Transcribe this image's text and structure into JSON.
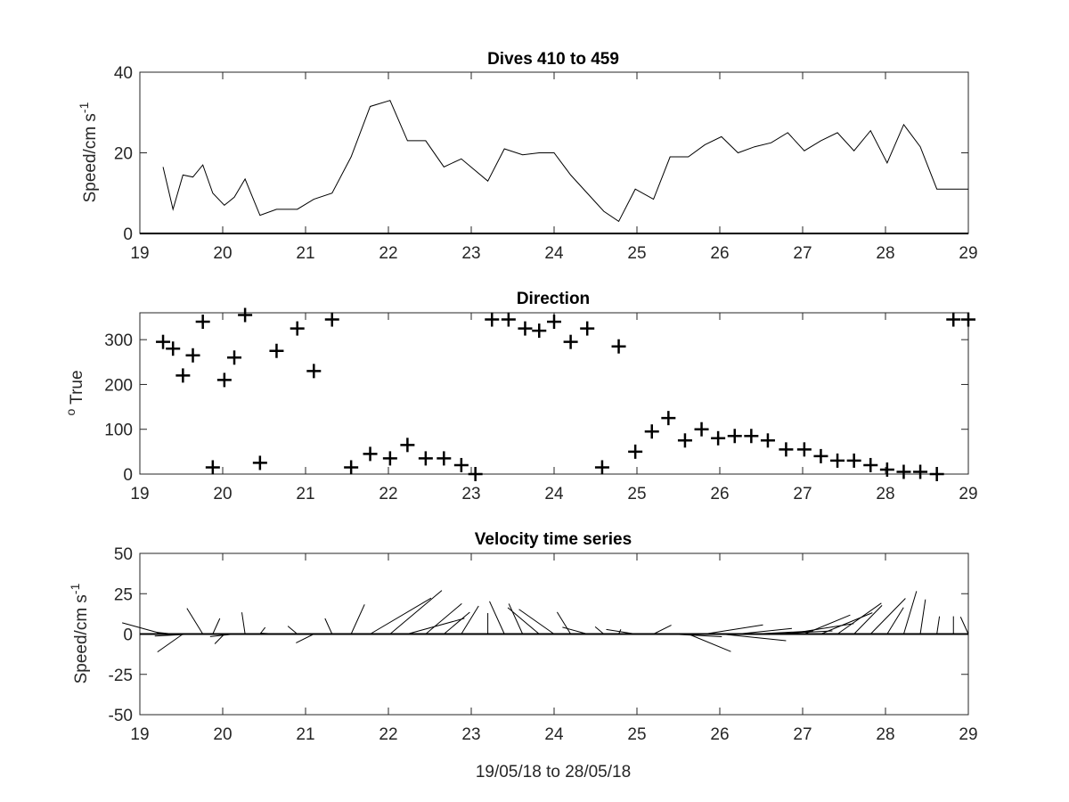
{
  "chart_data": [
    {
      "type": "line",
      "title": "Dives 410 to 459",
      "ylabel_base": "Speed/cm s",
      "ylabel_sup": "-1",
      "xlim": [
        19,
        29
      ],
      "ylim": [
        0,
        40
      ],
      "xticks": [
        19,
        20,
        21,
        22,
        23,
        24,
        25,
        26,
        27,
        28,
        29
      ],
      "yticks": [
        0,
        20,
        40
      ],
      "zero_line": true,
      "series": [
        {
          "x": [
            19.28,
            19.4,
            19.52,
            19.64,
            19.76,
            19.88,
            20.02,
            20.14,
            20.27,
            20.45,
            20.65,
            20.9,
            21.1,
            21.32,
            21.55,
            21.78,
            22.02,
            22.23,
            22.45,
            22.67,
            22.88,
            23.2,
            23.4,
            23.62,
            23.82,
            24.0,
            24.2,
            24.4,
            24.6,
            24.78,
            24.98,
            25.2,
            25.4,
            25.62,
            25.82,
            26.02,
            26.22,
            26.42,
            26.62,
            26.82,
            27.02,
            27.22,
            27.42,
            27.62,
            27.82,
            28.02,
            28.22,
            28.42,
            28.62,
            28.82,
            29.0
          ],
          "y": [
            16.5,
            6.0,
            14.5,
            14.0,
            17.0,
            10.0,
            7.0,
            9.0,
            13.5,
            4.5,
            6.0,
            6.0,
            8.5,
            10.0,
            19.0,
            31.5,
            33.0,
            23.0,
            23.0,
            16.5,
            18.5,
            13.0,
            21.0,
            19.5,
            20.0,
            20.0,
            14.5,
            10.0,
            5.5,
            3.0,
            11.0,
            8.5,
            19.0,
            19.0,
            22.0,
            24.0,
            20.0,
            21.5,
            22.5,
            25.0,
            20.5,
            23.0,
            25.0,
            20.5,
            25.5,
            17.5,
            27.0,
            21.5,
            11.0,
            11.0,
            11.0
          ]
        }
      ]
    },
    {
      "type": "scatter",
      "title": "Direction",
      "ylabel_sup": "o",
      "ylabel_base": " True",
      "xlim": [
        19,
        29
      ],
      "ylim": [
        0,
        360
      ],
      "xticks": [
        19,
        20,
        21,
        22,
        23,
        24,
        25,
        26,
        27,
        28,
        29
      ],
      "yticks": [
        0,
        100,
        200,
        300
      ],
      "marker": "+",
      "series": [
        {
          "x": [
            19.28,
            19.4,
            19.52,
            19.64,
            19.76,
            19.88,
            20.02,
            20.14,
            20.27,
            20.45,
            20.65,
            20.9,
            21.1,
            21.32,
            21.55,
            21.78,
            22.02,
            22.23,
            22.45,
            22.67,
            22.88,
            23.05,
            23.25,
            23.45,
            23.65,
            23.82,
            24.0,
            24.2,
            24.4,
            24.58,
            24.78,
            24.98,
            25.18,
            25.38,
            25.58,
            25.78,
            25.98,
            26.18,
            26.38,
            26.58,
            26.8,
            27.02,
            27.22,
            27.42,
            27.62,
            27.82,
            28.02,
            28.22,
            28.42,
            28.62,
            28.82,
            29.0
          ],
          "y": [
            295,
            280,
            220,
            265,
            340,
            15,
            210,
            260,
            355,
            25,
            275,
            325,
            230,
            345,
            15,
            45,
            35,
            65,
            35,
            35,
            20,
            0,
            345,
            345,
            325,
            320,
            340,
            295,
            325,
            15,
            285,
            50,
            95,
            125,
            75,
            100,
            80,
            85,
            85,
            75,
            55,
            55,
            40,
            30,
            30,
            20,
            10,
            5,
            5,
            0,
            345,
            345
          ]
        }
      ]
    },
    {
      "type": "quiver",
      "title": "Velocity time series",
      "ylabel_base": "Speed/cm s",
      "ylabel_sup": "-1",
      "xlabel": "19/05/18 to 28/05/18",
      "xlim": [
        19,
        29
      ],
      "ylim": [
        -50,
        50
      ],
      "xticks": [
        19,
        20,
        21,
        22,
        23,
        24,
        25,
        26,
        27,
        28,
        29
      ],
      "yticks": [
        -50,
        -25,
        0,
        25,
        50
      ],
      "zero_line": true,
      "stick_scale_days_per_unit": 0.033
    }
  ]
}
